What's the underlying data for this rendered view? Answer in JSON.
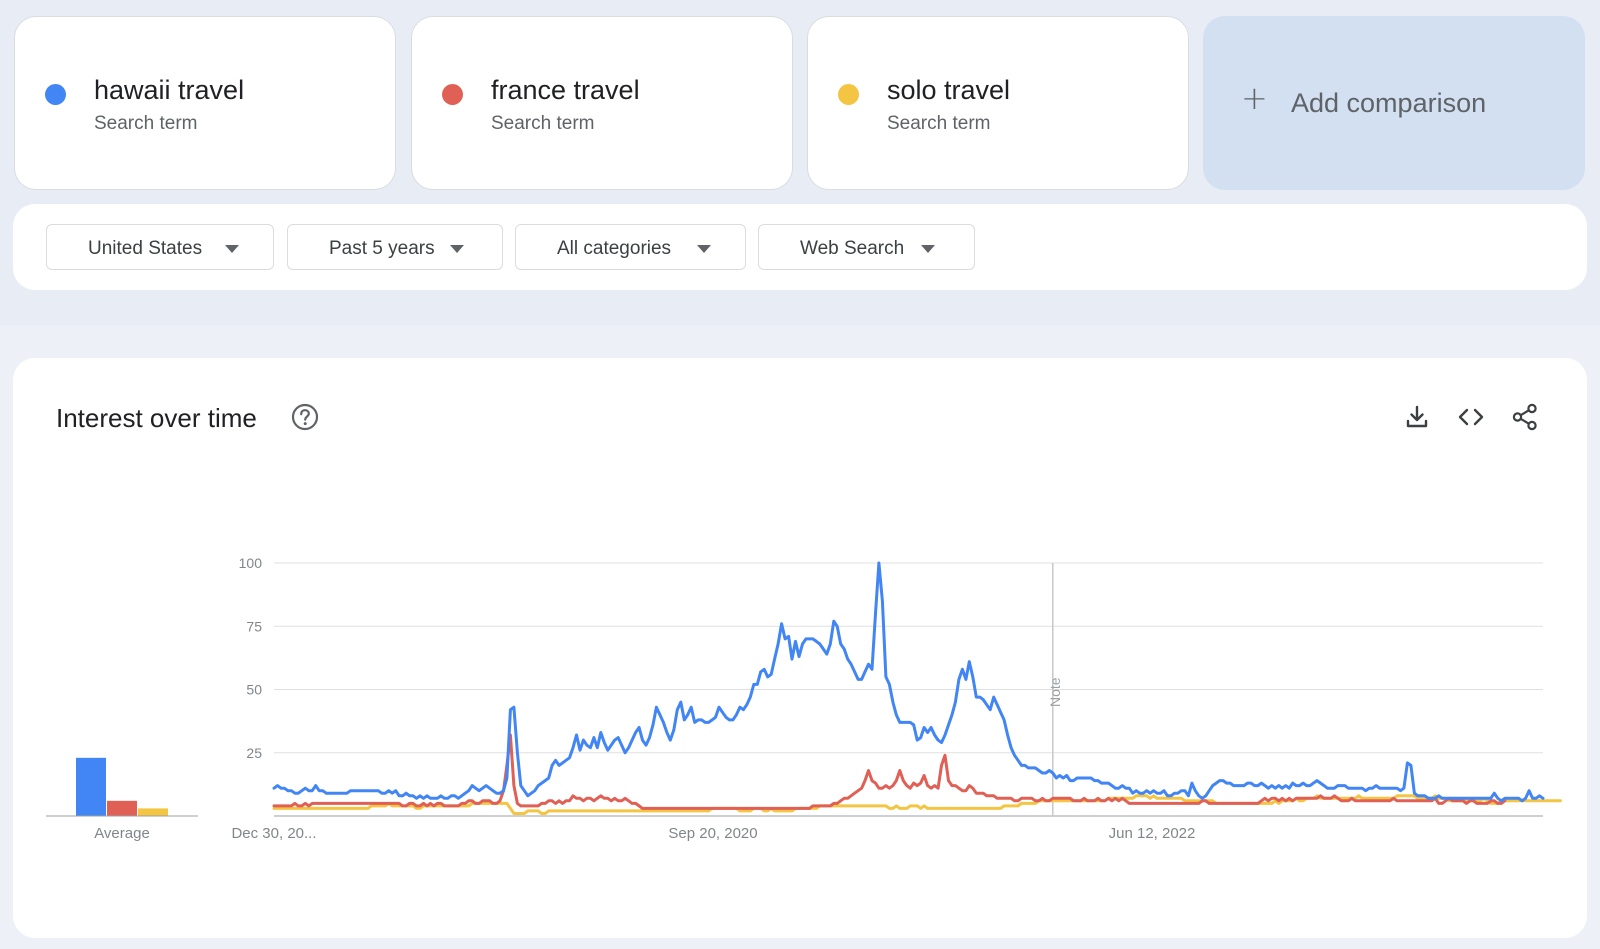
{
  "terms": [
    {
      "name": "hawaii travel",
      "subtitle": "Search term",
      "color": "#4285f4"
    },
    {
      "name": "france travel",
      "subtitle": "Search term",
      "color": "#e06055"
    },
    {
      "name": "solo travel",
      "subtitle": "Search term",
      "color": "#f4c542"
    }
  ],
  "add_comparison": {
    "label": "Add comparison",
    "icon": "plus-icon"
  },
  "filters": [
    {
      "label": "United States",
      "icon": "caret-down-icon"
    },
    {
      "label": "Past 5 years",
      "icon": "caret-down-icon"
    },
    {
      "label": "All categories",
      "icon": "caret-down-icon"
    },
    {
      "label": "Web Search",
      "icon": "caret-down-icon"
    }
  ],
  "panel": {
    "title": "Interest over time",
    "icons": [
      "help-circle-icon",
      "download-icon",
      "embed-code-icon",
      "share-icon"
    ]
  },
  "chart_data": {
    "type": "line",
    "x_tick_labels": [
      "Dec 30, 20...",
      "Sep 20, 2020",
      "Jun 12, 2022"
    ],
    "y_ticks": [
      25,
      50,
      75,
      100
    ],
    "ylim": [
      0,
      100
    ],
    "grid": true,
    "annotation": "Note",
    "average_label": "Average",
    "averages": [
      23,
      6,
      3
    ],
    "series": [
      {
        "name": "hawaii travel",
        "color": "#4285f4",
        "values": [
          11,
          12,
          11,
          11,
          10,
          10,
          9,
          9,
          10,
          11,
          10,
          10,
          12,
          10,
          10,
          9,
          9,
          9,
          9,
          9,
          9,
          9,
          10,
          10,
          10,
          10,
          10,
          10,
          10,
          10,
          10,
          9,
          9,
          10,
          9,
          10,
          8,
          8,
          9,
          8,
          8,
          7,
          8,
          7,
          8,
          7,
          7,
          7,
          8,
          7,
          7,
          8,
          8,
          7,
          8,
          9,
          10,
          12,
          11,
          10,
          11,
          12,
          11,
          10,
          9,
          9,
          10,
          15,
          42,
          43,
          25,
          12,
          10,
          8,
          9,
          10,
          12,
          13,
          14,
          15,
          20,
          22,
          20,
          21,
          22,
          23,
          27,
          32,
          26,
          30,
          28,
          27,
          31,
          27,
          33,
          29,
          26,
          28,
          30,
          31,
          28,
          25,
          27,
          30,
          33,
          35,
          30,
          28,
          31,
          36,
          43,
          40,
          37,
          33,
          30,
          34,
          42,
          45,
          38,
          40,
          43,
          37,
          38,
          38,
          37,
          37,
          38,
          39,
          43,
          41,
          39,
          38,
          38,
          40,
          43,
          42,
          44,
          47,
          52,
          52,
          57,
          58,
          55,
          56,
          62,
          68,
          76,
          70,
          71,
          62,
          69,
          63,
          68,
          70,
          70,
          70,
          69,
          68,
          66,
          64,
          68,
          77,
          75,
          68,
          66,
          62,
          60,
          57,
          54,
          54,
          57,
          60,
          58,
          80,
          100,
          85,
          55,
          52,
          45,
          40,
          37,
          37,
          37,
          37,
          36,
          30,
          31,
          35,
          33,
          35,
          32,
          30,
          29,
          32,
          36,
          40,
          45,
          54,
          58,
          54,
          61,
          55,
          47,
          47,
          46,
          44,
          42,
          47,
          44,
          41,
          38,
          32,
          27,
          24,
          22,
          20,
          20,
          19,
          19,
          19,
          18,
          17,
          17,
          18,
          17,
          15,
          16,
          15,
          16,
          14,
          14,
          15,
          15,
          15,
          15,
          15,
          14,
          14,
          13,
          13,
          13,
          12,
          11,
          11,
          12,
          11,
          11,
          9,
          10,
          9,
          9,
          10,
          9,
          10,
          9,
          9,
          10,
          8,
          8,
          9,
          9,
          10,
          10,
          8,
          13,
          10,
          8,
          7,
          8,
          10,
          12,
          13,
          14,
          14,
          13,
          13,
          12,
          12,
          12,
          12,
          13,
          13,
          12,
          12,
          13,
          12,
          11,
          12,
          11,
          12,
          11,
          12,
          11,
          13,
          12,
          12,
          13,
          12,
          12,
          13,
          14,
          13,
          12,
          11,
          11,
          11,
          12,
          12,
          12,
          11,
          11,
          11,
          11,
          11,
          10,
          11,
          11,
          12,
          11,
          11,
          11,
          11,
          11,
          11,
          10,
          11,
          21,
          20,
          9,
          8,
          8,
          8,
          7,
          7,
          7,
          8,
          7,
          7,
          7,
          7,
          7,
          7,
          7,
          7,
          7,
          7,
          7,
          7,
          7,
          7,
          7,
          9,
          7,
          6,
          7,
          7,
          7,
          7,
          7,
          6,
          7,
          10,
          7,
          7,
          8,
          7
        ]
      },
      {
        "name": "france travel",
        "color": "#e06055",
        "values": [
          4,
          4,
          4,
          4,
          4,
          4,
          5,
          4,
          4,
          5,
          4,
          5,
          5,
          5,
          5,
          5,
          5,
          5,
          5,
          5,
          5,
          5,
          5,
          5,
          5,
          5,
          5,
          5,
          5,
          5,
          5,
          5,
          5,
          5,
          5,
          5,
          5,
          4,
          4,
          5,
          5,
          4,
          4,
          5,
          4,
          5,
          4,
          5,
          5,
          4,
          4,
          4,
          4,
          4,
          5,
          5,
          6,
          6,
          5,
          5,
          6,
          6,
          6,
          5,
          5,
          6,
          10,
          20,
          32,
          12,
          5,
          4,
          4,
          4,
          4,
          4,
          4,
          5,
          5,
          6,
          6,
          5,
          6,
          5,
          6,
          6,
          8,
          7,
          7,
          6,
          7,
          7,
          6,
          7,
          8,
          7,
          7,
          6,
          7,
          6,
          6,
          7,
          6,
          5,
          5,
          4,
          3,
          3,
          3,
          3,
          3,
          3,
          3,
          3,
          3,
          3,
          3,
          3,
          3,
          3,
          3,
          3,
          3,
          3,
          3,
          3,
          3,
          3,
          3,
          3,
          3,
          3,
          3,
          3,
          3,
          3,
          3,
          3,
          3,
          3,
          3,
          3,
          3,
          3,
          3,
          3,
          3,
          3,
          3,
          3,
          3,
          3,
          3,
          3,
          3,
          4,
          4,
          4,
          4,
          4,
          4,
          5,
          5,
          6,
          7,
          7,
          8,
          9,
          10,
          11,
          14,
          18,
          14,
          13,
          11,
          11,
          12,
          11,
          12,
          14,
          18,
          14,
          12,
          11,
          13,
          12,
          13,
          16,
          12,
          11,
          12,
          11,
          20,
          24,
          14,
          12,
          12,
          11,
          10,
          10,
          12,
          11,
          9,
          9,
          9,
          8,
          8,
          8,
          7,
          7,
          7,
          7,
          7,
          6,
          6,
          7,
          7,
          7,
          7,
          6,
          6,
          7,
          6,
          6,
          7,
          7,
          7,
          7,
          7,
          7,
          6,
          6,
          6,
          7,
          6,
          6,
          6,
          7,
          6,
          6,
          7,
          6,
          7,
          6,
          7,
          6,
          5,
          5,
          5,
          5,
          5,
          5,
          5,
          5,
          5,
          5,
          5,
          5,
          5,
          5,
          5,
          5,
          5,
          5,
          5,
          5,
          5,
          6,
          6,
          5,
          5,
          5,
          5,
          5,
          5,
          5,
          5,
          5,
          5,
          5,
          5,
          5,
          5,
          5,
          6,
          7,
          6,
          7,
          7,
          6,
          7,
          6,
          7,
          6,
          7,
          7,
          7,
          7,
          7,
          7,
          7,
          8,
          7,
          7,
          7,
          8,
          7,
          6,
          6,
          6,
          7,
          6,
          6,
          6,
          6,
          6,
          6,
          6,
          6,
          6,
          6,
          6,
          7,
          6,
          6,
          6,
          6,
          6,
          6,
          6,
          6,
          6,
          6,
          6,
          7,
          5,
          5,
          6,
          7,
          6,
          6,
          6,
          6,
          5,
          6,
          6,
          5,
          5,
          5,
          5,
          6,
          6,
          5,
          5,
          6
        ]
      },
      {
        "name": "solo travel",
        "color": "#f4c542",
        "values": [
          3,
          3,
          3,
          3,
          3,
          3,
          3,
          3,
          3,
          3,
          3,
          3,
          3,
          3,
          3,
          3,
          3,
          3,
          3,
          3,
          3,
          3,
          3,
          3,
          3,
          3,
          3,
          3,
          4,
          4,
          4,
          4,
          4,
          5,
          4,
          4,
          4,
          4,
          4,
          4,
          4,
          3,
          3,
          4,
          4,
          4,
          4,
          4,
          4,
          4,
          4,
          4,
          4,
          4,
          4,
          4,
          4,
          5,
          5,
          5,
          5,
          5,
          5,
          5,
          5,
          5,
          5,
          5,
          3,
          1,
          1,
          1,
          1,
          2,
          2,
          2,
          2,
          1,
          1,
          2,
          2,
          2,
          2,
          2,
          2,
          2,
          2,
          2,
          2,
          2,
          2,
          2,
          2,
          2,
          2,
          2,
          2,
          2,
          2,
          2,
          2,
          2,
          2,
          2,
          2,
          2,
          2,
          2,
          2,
          2,
          2,
          2,
          2,
          2,
          2,
          2,
          2,
          2,
          2,
          2,
          2,
          2,
          2,
          2,
          2,
          2,
          3,
          3,
          3,
          3,
          3,
          3,
          3,
          3,
          2,
          2,
          2,
          2,
          3,
          3,
          3,
          2,
          2,
          3,
          2,
          2,
          2,
          2,
          2,
          2,
          3,
          3,
          3,
          3,
          3,
          3,
          3,
          4,
          4,
          4,
          4,
          4,
          4,
          4,
          4,
          4,
          4,
          4,
          4,
          4,
          4,
          4,
          4,
          4,
          4,
          4,
          4,
          3,
          3,
          4,
          3,
          3,
          3,
          4,
          4,
          4,
          3,
          4,
          3,
          3,
          3,
          3,
          3,
          3,
          3,
          3,
          3,
          3,
          3,
          3,
          3,
          3,
          3,
          3,
          3,
          3,
          3,
          3,
          3,
          3,
          4,
          4,
          4,
          4,
          4,
          5,
          5,
          5,
          5,
          5,
          6,
          6,
          6,
          6,
          6,
          6,
          6,
          6,
          6,
          6,
          6,
          6,
          6,
          6,
          6,
          6,
          6,
          6,
          6,
          6,
          7,
          7,
          7,
          7,
          7,
          7,
          7,
          7,
          8,
          8,
          8,
          8,
          7,
          8,
          7,
          7,
          7,
          7,
          7,
          7,
          7,
          7,
          6,
          6,
          6,
          6,
          6,
          6,
          6,
          6,
          6,
          5,
          5,
          5,
          5,
          5,
          5,
          5,
          5,
          5,
          5,
          5,
          5,
          5,
          5,
          5,
          5,
          5,
          6,
          5,
          6,
          6,
          6,
          6,
          7,
          6,
          6,
          7,
          7,
          7,
          8,
          7,
          7,
          7,
          7,
          7,
          7,
          7,
          7,
          7,
          7,
          7,
          8,
          7,
          7,
          7,
          7,
          7,
          7,
          7,
          7,
          7,
          7,
          8,
          8,
          8,
          8,
          8,
          8,
          7,
          7,
          7,
          7,
          7,
          8,
          7,
          7,
          7,
          6,
          6,
          6,
          6,
          6,
          6,
          6,
          6,
          6,
          6,
          7,
          6,
          5,
          5,
          5,
          6,
          6,
          6,
          6,
          6,
          6,
          6,
          6,
          6,
          6,
          6,
          6,
          6,
          6,
          6,
          6,
          6,
          6
        ]
      }
    ]
  }
}
